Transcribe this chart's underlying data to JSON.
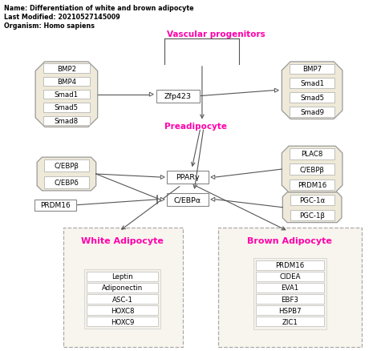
{
  "title_lines": [
    "Name: Differentiation of white and brown adipocyte",
    "Last Modified: 20210527145009",
    "Organism: Homo sapiens"
  ],
  "vascular_progenitors_label": "Vascular progenitors",
  "preadipocyte_label": "Preadipocyte",
  "white_adipocyte_label": "White Adipocyte",
  "brown_adipocyte_label": "Brown Adipocyte",
  "left_octagon_genes": [
    "BMP2",
    "BMP4",
    "Smad1",
    "Smad5",
    "Smad8"
  ],
  "right_octagon_genes": [
    "BMP7",
    "Smad1",
    "Smad5",
    "Smad9"
  ],
  "middle_box_gene": "Zfp423",
  "left_oct2_genes": [
    "C/EBPβ",
    "C/EBPδ"
  ],
  "right_oct2_genes": [
    "PLAC8",
    "C/EBPβ",
    "PRDM16"
  ],
  "ppar_box": "PPARγ",
  "cebpa_box": "C/EBPα",
  "prdm16_box": "PRDM16",
  "right_oct3_genes": [
    "PGC-1α",
    "PGC-1β"
  ],
  "white_genes": [
    "Leptin",
    "Adiponectin",
    "ASC-1",
    "HOXC8",
    "HOXC9"
  ],
  "brown_genes": [
    "PRDM16",
    "CIDEA",
    "EVA1",
    "EBF3",
    "HSPB7",
    "ZIC1"
  ],
  "magenta": "#FF00AA",
  "bg_color": "#FFFFFF",
  "box_fill": "#FFFFFF",
  "box_edge": "#888888",
  "oct_fill": "#EEE9D8",
  "oct_edge": "#999999",
  "arrow_color": "#555555",
  "dashed_box_color": "#AAAAAA",
  "dashed_fill": "#F5F2EA"
}
